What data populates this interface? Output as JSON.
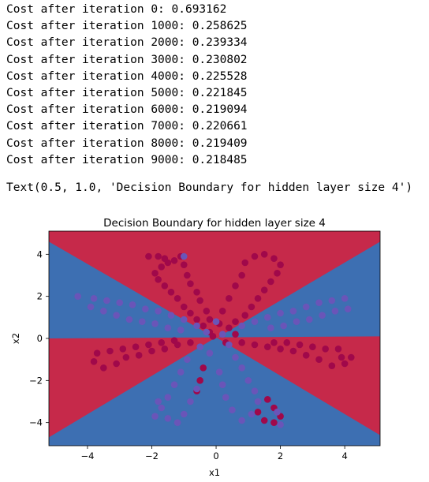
{
  "log_lines": [
    "Cost after iteration 0: 0.693162",
    "Cost after iteration 1000: 0.258625",
    "Cost after iteration 2000: 0.239334",
    "Cost after iteration 3000: 0.230802",
    "Cost after iteration 4000: 0.225528",
    "Cost after iteration 5000: 0.221845",
    "Cost after iteration 6000: 0.219094",
    "Cost after iteration 7000: 0.220661",
    "Cost after iteration 8000: 0.219409",
    "Cost after iteration 9000: 0.218485"
  ],
  "repr_line": "Text(0.5, 1.0, 'Decision Boundary for hidden layer size 4')",
  "colors": {
    "region_red": "#c6294a",
    "region_blue": "#3d6fb2",
    "point_red": "#a0084a",
    "point_blue": "#6a55b8"
  },
  "chart_data": {
    "type": "scatter",
    "title": "Decision Boundary for hidden layer size 4",
    "xlabel": "x1",
    "ylabel": "x2",
    "xlim": [
      -5.2,
      5.1
    ],
    "ylim": [
      -5.1,
      5.1
    ],
    "xticks": [
      "−4",
      "−2",
      "0",
      "2",
      "4"
    ],
    "xtick_values": [
      -4,
      -2,
      0,
      2,
      4
    ],
    "yticks": [
      "4",
      "2",
      "0",
      "−2",
      "−4"
    ],
    "ytick_values": [
      4,
      2,
      0,
      -2,
      -4
    ],
    "decision_regions": {
      "class_0_color": "red",
      "class_1_color": "blue",
      "boundaries": [
        {
          "from": [
            -5.2,
            4.6
          ],
          "to": [
            5.1,
            -4.6
          ]
        },
        {
          "from": [
            -5.2,
            -4.7
          ],
          "to": [
            5.1,
            4.6
          ]
        },
        {
          "from": [
            -5.2,
            0.0
          ],
          "to": [
            5.1,
            0.1
          ]
        }
      ]
    },
    "series": [
      {
        "class": 0,
        "points": [
          [
            -2.1,
            3.9
          ],
          [
            -1.8,
            3.9
          ],
          [
            -1.6,
            3.8
          ],
          [
            -1.5,
            3.6
          ],
          [
            -1.7,
            3.4
          ],
          [
            -1.9,
            3.1
          ],
          [
            -1.8,
            2.8
          ],
          [
            -1.6,
            2.5
          ],
          [
            -1.4,
            2.2
          ],
          [
            -1.2,
            1.9
          ],
          [
            -1.0,
            1.5
          ],
          [
            -0.8,
            1.2
          ],
          [
            -0.6,
            0.9
          ],
          [
            -0.4,
            0.6
          ],
          [
            -0.2,
            0.3
          ],
          [
            -1.3,
            3.7
          ],
          [
            -1.1,
            3.9
          ],
          [
            -1.0,
            3.5
          ],
          [
            -0.9,
            3.0
          ],
          [
            -0.8,
            2.6
          ],
          [
            -0.6,
            2.2
          ],
          [
            -0.5,
            1.8
          ],
          [
            -0.3,
            1.3
          ],
          [
            -0.2,
            0.9
          ],
          [
            1.2,
            3.9
          ],
          [
            1.5,
            4.0
          ],
          [
            1.8,
            3.8
          ],
          [
            2.0,
            3.5
          ],
          [
            1.9,
            3.1
          ],
          [
            1.7,
            2.7
          ],
          [
            1.5,
            2.3
          ],
          [
            1.3,
            1.9
          ],
          [
            1.1,
            1.5
          ],
          [
            0.9,
            1.1
          ],
          [
            0.6,
            0.8
          ],
          [
            0.4,
            0.5
          ],
          [
            0.9,
            3.6
          ],
          [
            0.8,
            3.0
          ],
          [
            0.6,
            2.5
          ],
          [
            0.4,
            1.9
          ],
          [
            0.2,
            1.3
          ],
          [
            0.1,
            0.7
          ],
          [
            -3.8,
            -1.1
          ],
          [
            -3.5,
            -1.4
          ],
          [
            -3.1,
            -1.2
          ],
          [
            -2.8,
            -0.9
          ],
          [
            -2.4,
            -0.8
          ],
          [
            -2.0,
            -0.6
          ],
          [
            -1.6,
            -0.5
          ],
          [
            -1.2,
            -0.3
          ],
          [
            -0.8,
            -0.2
          ],
          [
            -3.7,
            -0.7
          ],
          [
            -3.3,
            -0.6
          ],
          [
            -2.9,
            -0.5
          ],
          [
            -2.5,
            -0.4
          ],
          [
            -2.1,
            -0.3
          ],
          [
            -1.7,
            -0.2
          ],
          [
            -1.3,
            -0.1
          ],
          [
            3.9,
            -0.9
          ],
          [
            4.2,
            -0.9
          ],
          [
            4.0,
            -1.2
          ],
          [
            3.6,
            -1.3
          ],
          [
            3.2,
            -1.0
          ],
          [
            2.8,
            -0.8
          ],
          [
            2.4,
            -0.6
          ],
          [
            2.0,
            -0.5
          ],
          [
            1.6,
            -0.4
          ],
          [
            1.2,
            -0.3
          ],
          [
            0.8,
            -0.2
          ],
          [
            3.8,
            -0.5
          ],
          [
            3.4,
            -0.5
          ],
          [
            3.0,
            -0.4
          ],
          [
            2.6,
            -0.3
          ],
          [
            2.2,
            -0.2
          ],
          [
            1.8,
            -0.2
          ],
          [
            -0.4,
            -1.4
          ],
          [
            -0.5,
            -2.0
          ],
          [
            -0.6,
            -2.5
          ],
          [
            1.3,
            -3.5
          ],
          [
            1.5,
            -3.9
          ],
          [
            1.8,
            -4.0
          ],
          [
            2.0,
            -3.7
          ],
          [
            1.8,
            -3.3
          ],
          [
            1.6,
            -2.9
          ],
          [
            0.6,
            0.2
          ],
          [
            0.3,
            -0.2
          ],
          [
            -0.1,
            0.1
          ]
        ]
      },
      {
        "class": 1,
        "points": [
          [
            -4.3,
            2.0
          ],
          [
            -3.8,
            1.9
          ],
          [
            -3.4,
            1.8
          ],
          [
            -3.0,
            1.7
          ],
          [
            -2.6,
            1.6
          ],
          [
            -2.2,
            1.4
          ],
          [
            -1.8,
            1.3
          ],
          [
            -1.4,
            1.1
          ],
          [
            -1.0,
            0.9
          ],
          [
            -0.6,
            0.6
          ],
          [
            -3.9,
            1.5
          ],
          [
            -3.5,
            1.3
          ],
          [
            -3.1,
            1.1
          ],
          [
            -2.7,
            0.9
          ],
          [
            -2.3,
            0.8
          ],
          [
            -1.9,
            0.7
          ],
          [
            -1.5,
            0.5
          ],
          [
            -1.1,
            0.4
          ],
          [
            4.0,
            1.9
          ],
          [
            3.6,
            1.8
          ],
          [
            3.2,
            1.7
          ],
          [
            2.8,
            1.5
          ],
          [
            2.4,
            1.3
          ],
          [
            2.0,
            1.2
          ],
          [
            1.6,
            1.0
          ],
          [
            1.2,
            0.8
          ],
          [
            0.8,
            0.6
          ],
          [
            4.1,
            1.4
          ],
          [
            3.7,
            1.3
          ],
          [
            3.3,
            1.1
          ],
          [
            2.9,
            0.9
          ],
          [
            2.5,
            0.8
          ],
          [
            2.1,
            0.6
          ],
          [
            1.7,
            0.5
          ],
          [
            -1.0,
            3.9
          ],
          [
            -0.9,
            -1.0
          ],
          [
            -1.1,
            -1.6
          ],
          [
            -1.3,
            -2.2
          ],
          [
            -1.5,
            -2.8
          ],
          [
            -1.7,
            -3.3
          ],
          [
            -1.5,
            -3.8
          ],
          [
            -1.2,
            -4.0
          ],
          [
            -1.0,
            -3.6
          ],
          [
            -0.8,
            -3.0
          ],
          [
            -0.6,
            -2.4
          ],
          [
            -1.9,
            -3.7
          ],
          [
            -1.8,
            -3.0
          ],
          [
            0.6,
            -0.9
          ],
          [
            0.8,
            -1.4
          ],
          [
            1.0,
            -2.0
          ],
          [
            1.2,
            -2.5
          ],
          [
            1.3,
            -3.0
          ],
          [
            1.1,
            -3.6
          ],
          [
            0.8,
            -3.9
          ],
          [
            0.5,
            -3.4
          ],
          [
            0.3,
            -2.8
          ],
          [
            0.2,
            -2.2
          ],
          [
            0.1,
            -1.6
          ],
          [
            1.9,
            -3.5
          ],
          [
            2.0,
            -4.1
          ],
          [
            -0.3,
            0.3
          ],
          [
            0.2,
            0.2
          ],
          [
            0.4,
            -0.3
          ],
          [
            -0.5,
            -0.4
          ],
          [
            0.0,
            0.8
          ],
          [
            -0.2,
            -0.7
          ]
        ]
      }
    ],
    "grid": false
  }
}
